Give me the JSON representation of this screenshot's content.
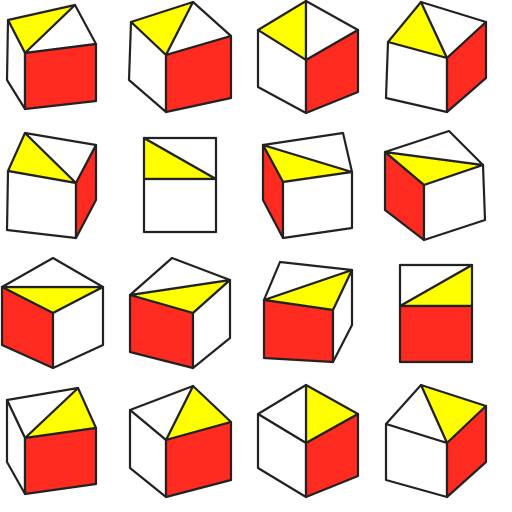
{
  "colors": {
    "red": "#ff2a20",
    "yellow": "#ffff00",
    "white": "#ffffff",
    "line": "#222222"
  },
  "cubes": [
    {
      "name": "cube-r1c1",
      "faces": [
        "yellow",
        "white",
        "white",
        "red"
      ]
    },
    {
      "name": "cube-r1c2",
      "faces": [
        "yellow",
        "white",
        "white",
        "red"
      ]
    },
    {
      "name": "cube-r1c3",
      "faces": [
        "yellow",
        "white",
        "white",
        "red"
      ]
    },
    {
      "name": "cube-r1c4",
      "faces": [
        "yellow",
        "white",
        "white",
        "red"
      ]
    },
    {
      "name": "cube-r2c1",
      "faces": [
        "yellow",
        "white",
        "white",
        "red"
      ]
    },
    {
      "name": "cube-r2c2",
      "faces": [
        "yellow",
        "white",
        "white"
      ]
    },
    {
      "name": "cube-r2c3",
      "faces": [
        "yellow",
        "white",
        "red",
        "white"
      ]
    },
    {
      "name": "cube-r2c4",
      "faces": [
        "yellow",
        "white",
        "red",
        "white"
      ]
    },
    {
      "name": "cube-r3c1",
      "faces": [
        "yellow",
        "white",
        "red",
        "white"
      ]
    },
    {
      "name": "cube-r3c2",
      "faces": [
        "yellow",
        "white",
        "red",
        "white"
      ]
    },
    {
      "name": "cube-r3c3",
      "faces": [
        "yellow",
        "white",
        "red",
        "white"
      ]
    },
    {
      "name": "cube-r3c4",
      "faces": [
        "yellow",
        "white",
        "red"
      ]
    },
    {
      "name": "cube-r4c1",
      "faces": [
        "yellow",
        "white",
        "white",
        "red"
      ]
    },
    {
      "name": "cube-r4c2",
      "faces": [
        "yellow",
        "white",
        "white",
        "red"
      ]
    },
    {
      "name": "cube-r4c3",
      "faces": [
        "yellow",
        "white",
        "white",
        "red"
      ]
    },
    {
      "name": "cube-r4c4",
      "faces": [
        "yellow",
        "white",
        "white",
        "red"
      ]
    }
  ]
}
